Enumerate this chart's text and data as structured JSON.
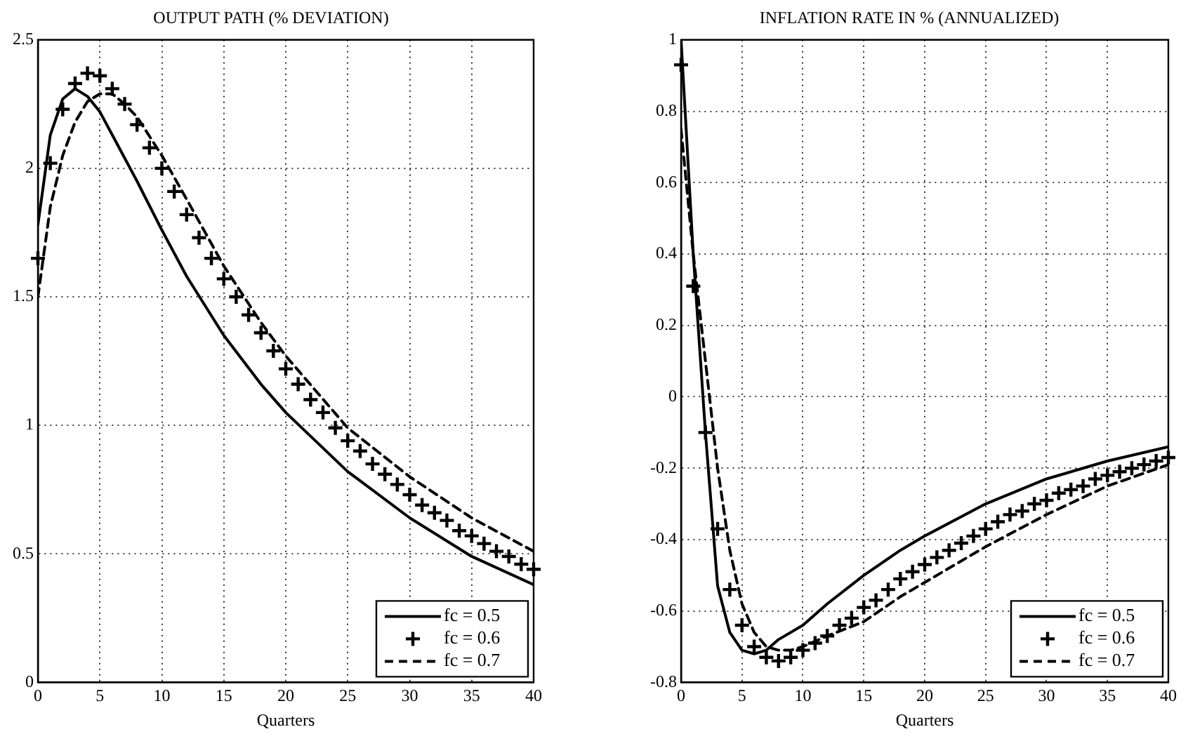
{
  "chart_data": [
    {
      "type": "line",
      "title": "OUTPUT PATH (% DEVIATION)",
      "xlabel": "Quarters",
      "xlim": [
        0,
        40
      ],
      "xticks": [
        0,
        5,
        10,
        15,
        20,
        25,
        30,
        35,
        40
      ],
      "ylim": [
        0,
        2.5
      ],
      "yticks": [
        0,
        0.5,
        1,
        1.5,
        2,
        2.5
      ],
      "grid": true,
      "legend": "bottom right",
      "series": [
        {
          "name": "fc = 0.5",
          "line_style": "solid",
          "color": "#000000",
          "x": [
            0,
            1,
            2,
            3,
            4,
            5,
            6,
            8,
            10,
            12,
            15,
            18,
            20,
            25,
            30,
            35,
            40
          ],
          "values": [
            1.78,
            2.13,
            2.27,
            2.31,
            2.28,
            2.22,
            2.13,
            1.95,
            1.76,
            1.58,
            1.35,
            1.16,
            1.05,
            0.82,
            0.64,
            0.49,
            0.38
          ]
        },
        {
          "name": "fc = 0.6",
          "type": "scatter",
          "marker": "cross",
          "color": "#000000",
          "x": [
            0,
            1,
            2,
            3,
            4,
            5,
            6,
            7,
            8,
            9,
            10,
            11,
            12,
            13,
            14,
            15,
            16,
            17,
            18,
            19,
            20,
            21,
            22,
            23,
            24,
            25,
            26,
            27,
            28,
            29,
            30,
            31,
            32,
            33,
            34,
            35,
            36,
            37,
            38,
            39,
            40
          ],
          "values": [
            1.65,
            2.02,
            2.23,
            2.33,
            2.37,
            2.36,
            2.31,
            2.25,
            2.17,
            2.08,
            2.0,
            1.91,
            1.82,
            1.73,
            1.65,
            1.57,
            1.5,
            1.43,
            1.36,
            1.29,
            1.22,
            1.16,
            1.1,
            1.05,
            0.99,
            0.94,
            0.9,
            0.85,
            0.81,
            0.77,
            0.73,
            0.69,
            0.66,
            0.63,
            0.59,
            0.57,
            0.54,
            0.51,
            0.49,
            0.46,
            0.44
          ]
        },
        {
          "name": "fc = 0.7",
          "line_style": "dashed",
          "color": "#000000",
          "x": [
            0,
            1,
            2,
            3,
            4,
            5,
            6,
            7,
            8,
            10,
            12,
            15,
            18,
            20,
            25,
            30,
            35,
            40
          ],
          "values": [
            1.5,
            1.85,
            2.05,
            2.18,
            2.26,
            2.29,
            2.29,
            2.25,
            2.2,
            2.05,
            1.88,
            1.62,
            1.4,
            1.27,
            0.99,
            0.8,
            0.64,
            0.51
          ]
        }
      ]
    },
    {
      "type": "line",
      "title": "INFLATION RATE IN % (ANNUALIZED)",
      "xlabel": "Quarters",
      "xlim": [
        0,
        40
      ],
      "xticks": [
        0,
        5,
        10,
        15,
        20,
        25,
        30,
        35,
        40
      ],
      "ylim": [
        -0.8,
        1
      ],
      "yticks": [
        -0.8,
        -0.6,
        -0.4,
        -0.2,
        0,
        0.2,
        0.4,
        0.6,
        0.8,
        1
      ],
      "grid": true,
      "legend": "bottom right",
      "series": [
        {
          "name": "fc = 0.5",
          "line_style": "solid",
          "color": "#000000",
          "x": [
            0,
            1,
            2,
            3,
            4,
            5,
            6,
            7,
            8,
            10,
            12,
            15,
            18,
            20,
            25,
            30,
            35,
            40
          ],
          "values": [
            1.0,
            0.4,
            -0.1,
            -0.53,
            -0.66,
            -0.71,
            -0.72,
            -0.71,
            -0.68,
            -0.64,
            -0.58,
            -0.5,
            -0.43,
            -0.39,
            -0.3,
            -0.23,
            -0.18,
            -0.14
          ]
        },
        {
          "name": "fc = 0.6",
          "type": "scatter",
          "marker": "cross",
          "color": "#000000",
          "x": [
            0,
            1,
            2,
            3,
            4,
            5,
            6,
            7,
            8,
            9,
            10,
            11,
            12,
            13,
            14,
            15,
            16,
            17,
            18,
            19,
            20,
            21,
            22,
            23,
            24,
            25,
            26,
            27,
            28,
            29,
            30,
            31,
            32,
            33,
            34,
            35,
            36,
            37,
            38,
            39,
            40
          ],
          "values": [
            0.93,
            0.31,
            -0.1,
            -0.37,
            -0.54,
            -0.64,
            -0.7,
            -0.73,
            -0.74,
            -0.73,
            -0.71,
            -0.69,
            -0.67,
            -0.64,
            -0.62,
            -0.59,
            -0.57,
            -0.54,
            -0.51,
            -0.49,
            -0.47,
            -0.45,
            -0.43,
            -0.41,
            -0.39,
            -0.37,
            -0.35,
            -0.33,
            -0.32,
            -0.3,
            -0.29,
            -0.27,
            -0.26,
            -0.25,
            -0.23,
            -0.22,
            -0.21,
            -0.2,
            -0.19,
            -0.18,
            -0.17
          ]
        },
        {
          "name": "fc = 0.7",
          "line_style": "dashed",
          "color": "#000000",
          "x": [
            0,
            1,
            2,
            3,
            4,
            5,
            6,
            7,
            8,
            9,
            10,
            12,
            15,
            18,
            20,
            25,
            30,
            35,
            40
          ],
          "values": [
            0.75,
            0.4,
            0.1,
            -0.2,
            -0.43,
            -0.58,
            -0.66,
            -0.7,
            -0.71,
            -0.71,
            -0.7,
            -0.67,
            -0.63,
            -0.56,
            -0.52,
            -0.42,
            -0.33,
            -0.25,
            -0.19
          ]
        }
      ]
    }
  ]
}
